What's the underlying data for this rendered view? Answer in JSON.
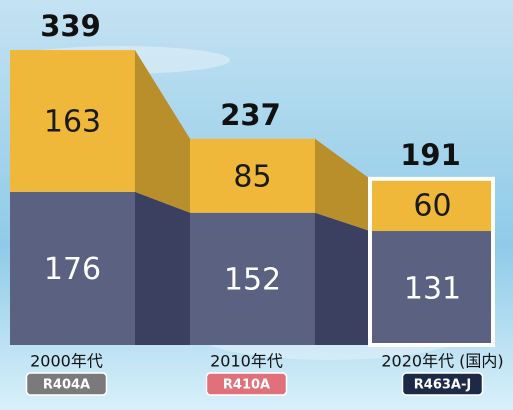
{
  "chart_data": {
    "type": "stacked-bar",
    "categories": [
      "2000年代",
      "2010年代",
      "2020年代 (国内)"
    ],
    "series": [
      {
        "color": "#5b6180",
        "side_color": "#3b4060",
        "label_color": "#ffffff",
        "values": [
          176,
          152,
          131
        ]
      },
      {
        "color": "#f0b83a",
        "side_color": "#b98f2b",
        "label_color": "#1a1a1a",
        "values": [
          163,
          85,
          60
        ]
      }
    ],
    "totals": [
      339,
      237,
      191
    ],
    "tags": [
      {
        "label": "R404A",
        "color": "#7a7a7a"
      },
      {
        "label": "R410A",
        "color": "#e0707a"
      },
      {
        "label": "R463A-J",
        "color": "#1c2a48"
      }
    ],
    "highlight": 2
  }
}
